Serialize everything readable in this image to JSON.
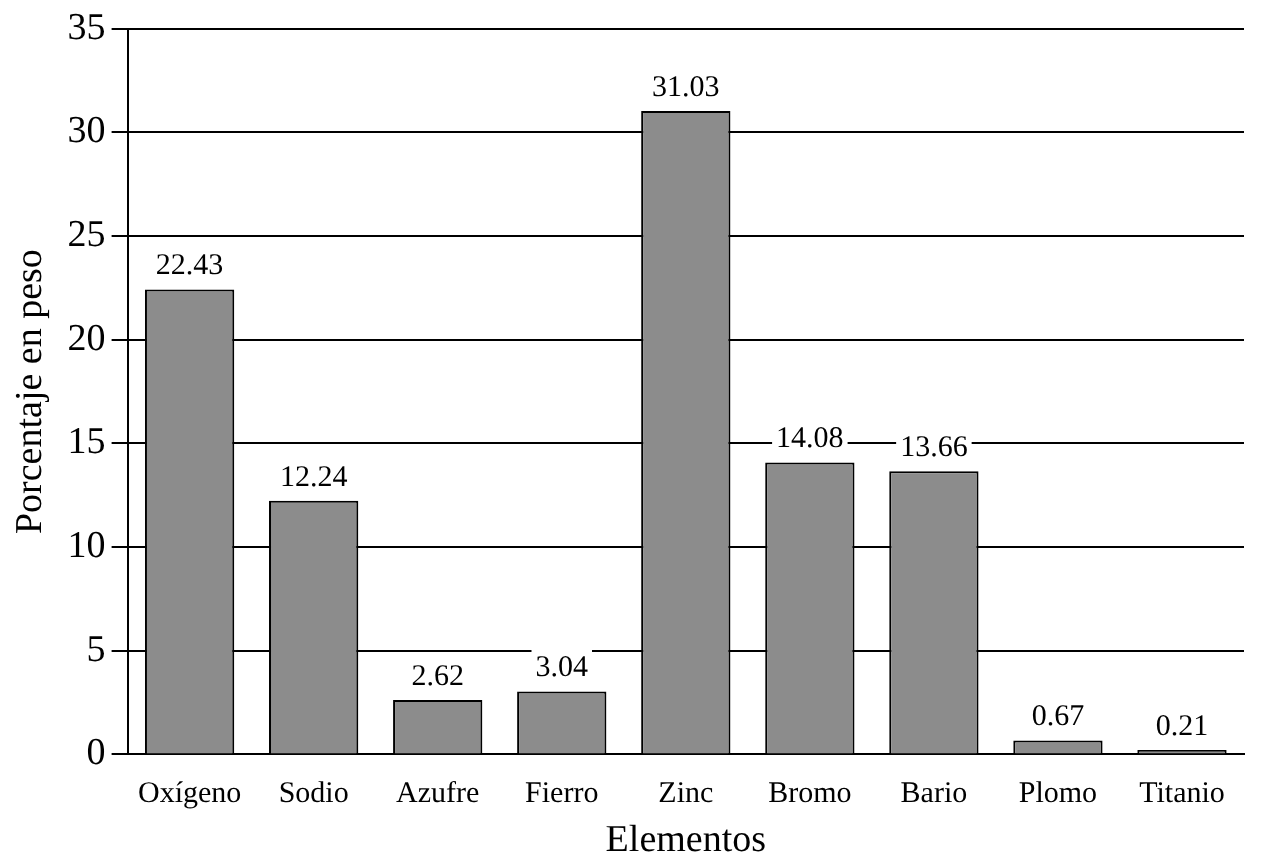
{
  "chart_data": {
    "type": "bar",
    "xlabel": "Elementos",
    "ylabel": "Porcentaje en peso",
    "categories": [
      "Oxígeno",
      "Sodio",
      "Azufre",
      "Fierro",
      "Zinc",
      "Bromo",
      "Bario",
      "Plomo",
      "Titanio"
    ],
    "values": [
      22.43,
      12.24,
      2.62,
      3.04,
      31.03,
      14.08,
      13.66,
      0.67,
      0.21
    ],
    "color": "#8c8c8c",
    "ylim": [
      0,
      35
    ],
    "yticks": [
      0,
      5,
      10,
      15,
      20,
      25,
      30,
      35
    ],
    "grid": "y",
    "data_labels": true,
    "legend": false
  }
}
